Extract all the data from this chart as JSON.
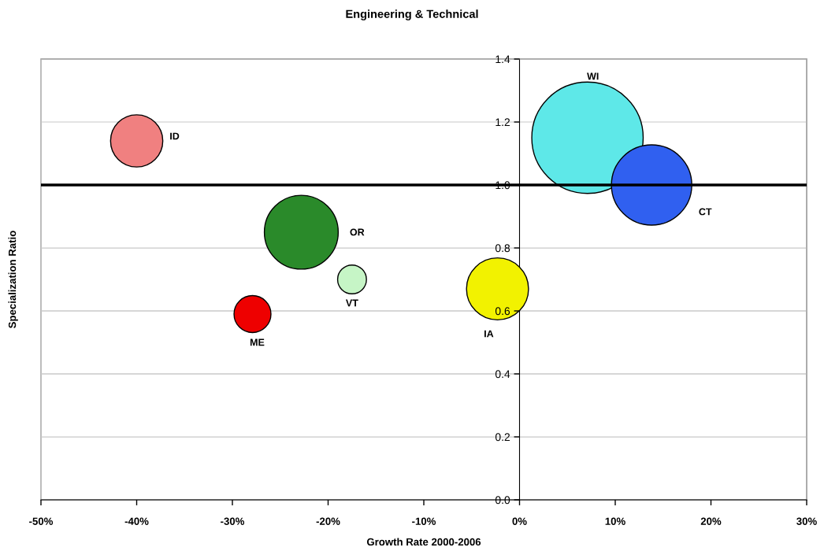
{
  "chart_data": {
    "type": "bubble",
    "title": "Engineering & Technical",
    "xlabel": "Growth Rate 2000-2006",
    "ylabel": "Specialization Ratio",
    "series": [
      {
        "name": "ID",
        "color": "#f08080",
        "x": [
          -40
        ],
        "values": [
          1.14
        ],
        "sizes": [
          0.22
        ]
      },
      {
        "name": "OR",
        "color": "#2a8a2a",
        "x": [
          -22.8
        ],
        "values": [
          0.85
        ],
        "sizes": [
          0.44
        ]
      },
      {
        "name": "VT",
        "color": "#c6f5c6",
        "x": [
          -17.5
        ],
        "values": [
          0.7
        ],
        "sizes": [
          0.067
        ]
      },
      {
        "name": "ME",
        "color": "#ee0000",
        "x": [
          -27.9
        ],
        "values": [
          0.59
        ],
        "sizes": [
          0.11
        ]
      },
      {
        "name": "WI",
        "color": "#5ee8e8",
        "x": [
          7.1
        ],
        "values": [
          1.15
        ],
        "sizes": [
          1
        ]
      },
      {
        "name": "CT",
        "color": "#3060f0",
        "x": [
          13.8
        ],
        "values": [
          1.0
        ],
        "sizes": [
          0.52
        ]
      },
      {
        "name": "IA",
        "color": "#f2f200",
        "x": [
          -2.3
        ],
        "values": [
          0.67
        ],
        "sizes": [
          0.31
        ]
      }
    ],
    "xlim": [
      -50,
      30
    ],
    "xticks": [
      {
        "value": -50,
        "label": "-50%"
      },
      {
        "value": -40,
        "label": "-40%"
      },
      {
        "value": -30,
        "label": "-30%"
      },
      {
        "value": -20,
        "label": "-20%"
      },
      {
        "value": -10,
        "label": "-10%"
      },
      {
        "value": 0,
        "label": "0%"
      },
      {
        "value": 10,
        "label": "10%"
      },
      {
        "value": 20,
        "label": "20%"
      },
      {
        "value": 30,
        "label": "30%"
      }
    ],
    "ylim": [
      0,
      1.4
    ],
    "yticks": [
      {
        "value": 0,
        "label": "0.0"
      },
      0.2,
      0.4,
      0.6,
      0.8,
      {
        "value": 1,
        "label": "1.0"
      },
      1.2,
      1.4
    ],
    "grid": "y",
    "marker": "circle",
    "ref_lines": [
      {
        "axis": "y",
        "value": 1,
        "color": "#000000"
      }
    ]
  }
}
